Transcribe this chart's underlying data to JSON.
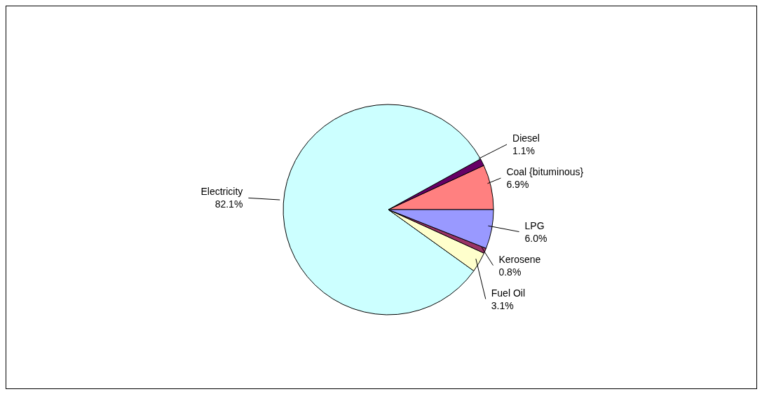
{
  "chart_data": {
    "type": "pie",
    "categories": [
      "Coal {bituminous}",
      "Diesel",
      "Electricity",
      "Fuel Oil",
      "Kerosene",
      "LPG"
    ],
    "values": [
      6.9,
      1.1,
      82.1,
      3.1,
      0.8,
      6.0
    ],
    "colors": [
      "#ff8080",
      "#660066",
      "#ccffff",
      "#ffffcc",
      "#993366",
      "#9999ff"
    ],
    "value_labels": [
      "6.9%",
      "1.1%",
      "82.1%",
      "3.1%",
      "0.8%",
      "6.0%"
    ],
    "legend": false
  }
}
